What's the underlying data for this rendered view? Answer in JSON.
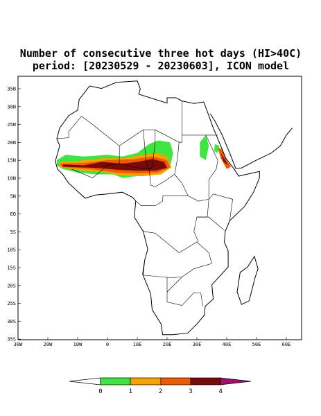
{
  "title": {
    "line1": "Number of consecutive three hot days (HI>40C)",
    "line2": "period: [20230529 - 20230603], ICON model"
  },
  "lat_labels": [
    "35N",
    "30N",
    "25N",
    "20N",
    "15N",
    "10N",
    "5N",
    "EQ",
    "5S",
    "10S",
    "15S",
    "20S",
    "25S",
    "30S",
    "35S"
  ],
  "lon_labels": [
    "30W",
    "20W",
    "10W",
    "0",
    "10E",
    "20E",
    "30E",
    "40E",
    "50E",
    "60E"
  ],
  "colorbar": {
    "labels": [
      "0",
      "1",
      "2",
      "3",
      "4"
    ]
  }
}
